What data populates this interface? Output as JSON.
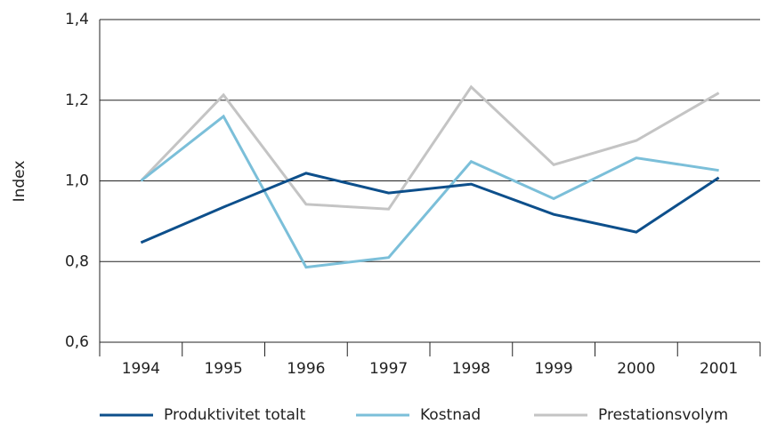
{
  "chart_data": {
    "type": "line",
    "y_label": "Index",
    "categories": [
      "1994",
      "1995",
      "1996",
      "1997",
      "1998",
      "1999",
      "2000",
      "2001"
    ],
    "series": [
      {
        "name": "Produktivitet totalt",
        "color": "#0d4f8b",
        "values": [
          0.847,
          0.935,
          1.019,
          0.97,
          0.992,
          0.917,
          0.873,
          1.008
        ]
      },
      {
        "name": "Kostnad",
        "color": "#7bbfd9",
        "values": [
          1.0,
          1.16,
          0.786,
          0.81,
          1.048,
          0.956,
          1.057,
          1.026
        ]
      },
      {
        "name": "Prestationsvolym",
        "color": "#c4c4c4",
        "values": [
          1.0,
          1.213,
          0.942,
          0.93,
          1.233,
          1.04,
          1.1,
          1.218
        ]
      }
    ],
    "ylim": [
      0.6,
      1.4
    ],
    "yticks": [
      {
        "value": 0.6,
        "label": "0,6"
      },
      {
        "value": 0.8,
        "label": "0,8"
      },
      {
        "value": 1.0,
        "label": "1,0"
      },
      {
        "value": 1.2,
        "label": "1,2"
      },
      {
        "value": 1.4,
        "label": "1,4"
      }
    ],
    "grid": true
  }
}
